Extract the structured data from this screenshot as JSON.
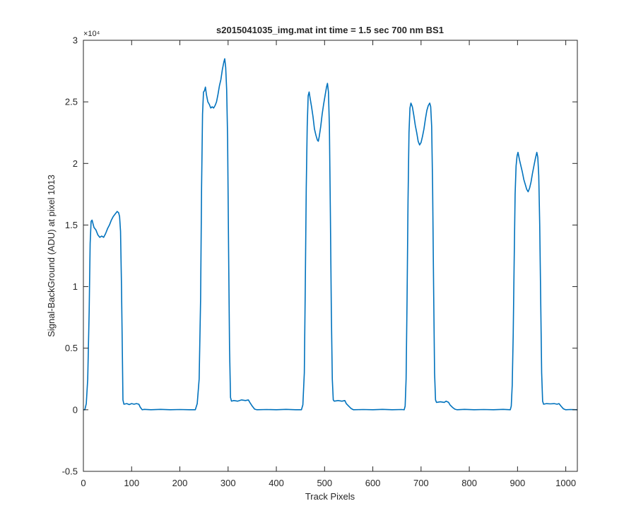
{
  "chart_data": {
    "type": "line",
    "title": "s2015041035_img.mat int time = 1.5 sec  700 nm BS1",
    "xlabel": "Track Pixels",
    "ylabel": "Signal-BackGround (ADU) at pixel 1013",
    "y_exponent_label": "×10⁴",
    "xlim": [
      0,
      1024
    ],
    "ylim": [
      -5000,
      30000
    ],
    "x_ticks": [
      0,
      100,
      200,
      300,
      400,
      500,
      600,
      700,
      800,
      900,
      1000
    ],
    "y_ticks": [
      -5000,
      0,
      5000,
      10000,
      15000,
      20000,
      25000,
      30000
    ],
    "y_tick_labels": [
      "-0.5",
      "0",
      "0.5",
      "1",
      "1.5",
      "2",
      "2.5",
      "3"
    ],
    "grid": false,
    "line_color": "#0072BD",
    "series": [
      {
        "points": [
          [
            0,
            0
          ],
          [
            3,
            0
          ],
          [
            6,
            500
          ],
          [
            9,
            2500
          ],
          [
            12,
            8000
          ],
          [
            14,
            13500
          ],
          [
            16,
            15300
          ],
          [
            18,
            15400
          ],
          [
            22,
            14800
          ],
          [
            26,
            14600
          ],
          [
            30,
            14200
          ],
          [
            34,
            14000
          ],
          [
            38,
            14100
          ],
          [
            42,
            14000
          ],
          [
            46,
            14300
          ],
          [
            50,
            14700
          ],
          [
            54,
            15000
          ],
          [
            58,
            15400
          ],
          [
            62,
            15700
          ],
          [
            66,
            15900
          ],
          [
            70,
            16100
          ],
          [
            73,
            16000
          ],
          [
            75,
            15700
          ],
          [
            77,
            14500
          ],
          [
            79,
            10000
          ],
          [
            81,
            4000
          ],
          [
            82,
            800
          ],
          [
            84,
            450
          ],
          [
            90,
            500
          ],
          [
            95,
            420
          ],
          [
            100,
            500
          ],
          [
            105,
            450
          ],
          [
            110,
            500
          ],
          [
            115,
            450
          ],
          [
            118,
            200
          ],
          [
            122,
            0
          ],
          [
            126,
            30
          ],
          [
            140,
            0
          ],
          [
            160,
            30
          ],
          [
            180,
            0
          ],
          [
            200,
            20
          ],
          [
            220,
            0
          ],
          [
            232,
            0
          ],
          [
            236,
            500
          ],
          [
            240,
            2500
          ],
          [
            243,
            9000
          ],
          [
            245,
            18000
          ],
          [
            247,
            24000
          ],
          [
            249,
            25800
          ],
          [
            251,
            25900
          ],
          [
            253,
            26200
          ],
          [
            255,
            25600
          ],
          [
            258,
            25000
          ],
          [
            261,
            24800
          ],
          [
            264,
            24500
          ],
          [
            267,
            24600
          ],
          [
            270,
            24500
          ],
          [
            273,
            24700
          ],
          [
            276,
            25000
          ],
          [
            279,
            25600
          ],
          [
            282,
            26300
          ],
          [
            285,
            26800
          ],
          [
            288,
            27600
          ],
          [
            291,
            28200
          ],
          [
            293,
            28500
          ],
          [
            295,
            27800
          ],
          [
            297,
            26000
          ],
          [
            299,
            22000
          ],
          [
            301,
            13000
          ],
          [
            303,
            5000
          ],
          [
            305,
            1000
          ],
          [
            307,
            700
          ],
          [
            312,
            750
          ],
          [
            320,
            700
          ],
          [
            328,
            800
          ],
          [
            336,
            750
          ],
          [
            342,
            800
          ],
          [
            345,
            600
          ],
          [
            350,
            300
          ],
          [
            355,
            50
          ],
          [
            360,
            0
          ],
          [
            380,
            20
          ],
          [
            400,
            0
          ],
          [
            420,
            30
          ],
          [
            440,
            0
          ],
          [
            452,
            0
          ],
          [
            455,
            400
          ],
          [
            458,
            3000
          ],
          [
            460,
            10000
          ],
          [
            462,
            18000
          ],
          [
            464,
            23000
          ],
          [
            466,
            25500
          ],
          [
            468,
            25800
          ],
          [
            470,
            25300
          ],
          [
            473,
            24600
          ],
          [
            476,
            23800
          ],
          [
            479,
            22800
          ],
          [
            482,
            22300
          ],
          [
            485,
            21900
          ],
          [
            487,
            21800
          ],
          [
            489,
            22200
          ],
          [
            492,
            23000
          ],
          [
            495,
            24000
          ],
          [
            498,
            24800
          ],
          [
            501,
            25500
          ],
          [
            504,
            26200
          ],
          [
            506,
            26500
          ],
          [
            508,
            25800
          ],
          [
            510,
            23000
          ],
          [
            512,
            16000
          ],
          [
            514,
            8000
          ],
          [
            516,
            2500
          ],
          [
            518,
            800
          ],
          [
            520,
            700
          ],
          [
            528,
            750
          ],
          [
            536,
            700
          ],
          [
            542,
            750
          ],
          [
            545,
            500
          ],
          [
            550,
            300
          ],
          [
            555,
            100
          ],
          [
            560,
            0
          ],
          [
            580,
            20
          ],
          [
            600,
            0
          ],
          [
            620,
            30
          ],
          [
            640,
            0
          ],
          [
            660,
            20
          ],
          [
            665,
            0
          ],
          [
            667,
            300
          ],
          [
            669,
            2500
          ],
          [
            671,
            9000
          ],
          [
            673,
            17000
          ],
          [
            675,
            22500
          ],
          [
            677,
            24500
          ],
          [
            679,
            24900
          ],
          [
            682,
            24600
          ],
          [
            685,
            23900
          ],
          [
            688,
            23100
          ],
          [
            691,
            22500
          ],
          [
            694,
            21800
          ],
          [
            697,
            21500
          ],
          [
            700,
            21700
          ],
          [
            703,
            22200
          ],
          [
            706,
            22800
          ],
          [
            709,
            23600
          ],
          [
            712,
            24300
          ],
          [
            715,
            24700
          ],
          [
            718,
            24900
          ],
          [
            720,
            24600
          ],
          [
            722,
            23000
          ],
          [
            724,
            18000
          ],
          [
            726,
            10000
          ],
          [
            728,
            3000
          ],
          [
            730,
            800
          ],
          [
            732,
            600
          ],
          [
            740,
            650
          ],
          [
            748,
            600
          ],
          [
            752,
            700
          ],
          [
            757,
            600
          ],
          [
            760,
            400
          ],
          [
            765,
            200
          ],
          [
            770,
            50
          ],
          [
            775,
            0
          ],
          [
            790,
            30
          ],
          [
            810,
            0
          ],
          [
            830,
            20
          ],
          [
            850,
            0
          ],
          [
            870,
            30
          ],
          [
            885,
            0
          ],
          [
            887,
            300
          ],
          [
            889,
            2000
          ],
          [
            891,
            6000
          ],
          [
            893,
            12000
          ],
          [
            895,
            17500
          ],
          [
            897,
            19800
          ],
          [
            899,
            20600
          ],
          [
            901,
            20900
          ],
          [
            904,
            20300
          ],
          [
            907,
            19800
          ],
          [
            910,
            19300
          ],
          [
            913,
            18700
          ],
          [
            916,
            18300
          ],
          [
            919,
            17900
          ],
          [
            922,
            17700
          ],
          [
            925,
            18000
          ],
          [
            928,
            18500
          ],
          [
            931,
            19200
          ],
          [
            934,
            19800
          ],
          [
            937,
            20400
          ],
          [
            940,
            20900
          ],
          [
            942,
            20500
          ],
          [
            944,
            19000
          ],
          [
            946,
            15000
          ],
          [
            948,
            9000
          ],
          [
            950,
            3000
          ],
          [
            952,
            700
          ],
          [
            954,
            450
          ],
          [
            960,
            500
          ],
          [
            968,
            480
          ],
          [
            976,
            500
          ],
          [
            982,
            450
          ],
          [
            986,
            500
          ],
          [
            990,
            300
          ],
          [
            995,
            80
          ],
          [
            1000,
            0
          ],
          [
            1010,
            20
          ],
          [
            1024,
            0
          ]
        ]
      }
    ]
  }
}
